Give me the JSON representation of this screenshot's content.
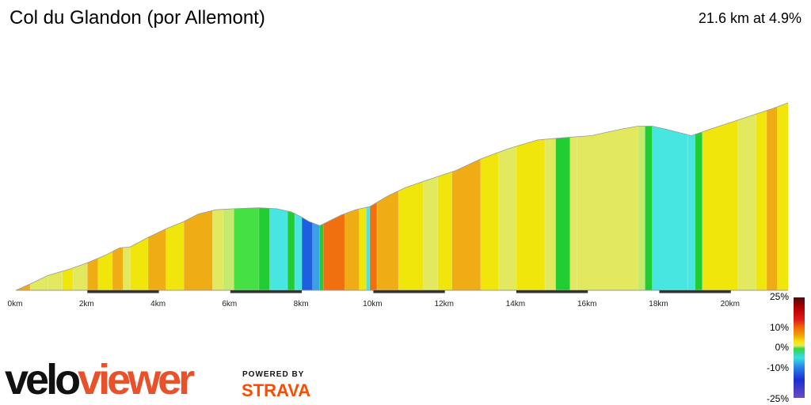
{
  "header": {
    "title": "Col du Glandon (por Allemont)",
    "summary": "21.6 km at 4.9%"
  },
  "branding": {
    "logo_part1": "velo",
    "logo_part2": "viewer",
    "powered_by": "POWERED BY",
    "strava": "STRAVA",
    "strava_color": "#fc4c02"
  },
  "gradient_scale": {
    "labels": [
      "25%",
      "10%",
      "0%",
      "-10%",
      "-25%"
    ]
  },
  "chart_data": {
    "type": "area",
    "title": "Col du Glandon (por Allemont)",
    "xlabel": "",
    "ylabel": "",
    "xlim": [
      0,
      21.6
    ],
    "ylim": [
      0,
      1000
    ],
    "x_ticks": [
      {
        "value": 0,
        "label": "0km"
      },
      {
        "value": 2,
        "label": "2km"
      },
      {
        "value": 4,
        "label": "4km"
      },
      {
        "value": 6,
        "label": "6km"
      },
      {
        "value": 8,
        "label": "8km"
      },
      {
        "value": 10,
        "label": "10km"
      },
      {
        "value": 12,
        "label": "12km"
      },
      {
        "value": 14,
        "label": "14km"
      },
      {
        "value": 16,
        "label": "16km"
      },
      {
        "value": 18,
        "label": "18km"
      },
      {
        "value": 20,
        "label": "20km"
      }
    ],
    "profile": [
      [
        0.0,
        0
      ],
      [
        0.4,
        30
      ],
      [
        0.9,
        70
      ],
      [
        1.5,
        100
      ],
      [
        2.0,
        130
      ],
      [
        2.5,
        165
      ],
      [
        2.9,
        200
      ],
      [
        3.2,
        205
      ],
      [
        3.7,
        250
      ],
      [
        4.2,
        290
      ],
      [
        4.7,
        325
      ],
      [
        5.1,
        360
      ],
      [
        5.6,
        380
      ],
      [
        6.1,
        385
      ],
      [
        6.8,
        390
      ],
      [
        7.3,
        385
      ],
      [
        7.7,
        370
      ],
      [
        8.0,
        345
      ],
      [
        8.2,
        325
      ],
      [
        8.5,
        305
      ],
      [
        8.8,
        330
      ],
      [
        9.1,
        355
      ],
      [
        9.5,
        380
      ],
      [
        9.9,
        395
      ],
      [
        10.4,
        445
      ],
      [
        10.9,
        485
      ],
      [
        11.5,
        520
      ],
      [
        12.3,
        565
      ],
      [
        13.0,
        620
      ],
      [
        13.8,
        670
      ],
      [
        14.6,
        710
      ],
      [
        15.3,
        720
      ],
      [
        16.1,
        730
      ],
      [
        16.9,
        760
      ],
      [
        17.4,
        775
      ],
      [
        17.8,
        775
      ],
      [
        18.2,
        760
      ],
      [
        18.9,
        730
      ],
      [
        19.5,
        765
      ],
      [
        20.4,
        815
      ],
      [
        21.2,
        860
      ],
      [
        21.6,
        885
      ]
    ],
    "segments": [
      {
        "x0": 0.0,
        "x1": 0.4,
        "color": "#f0ac14"
      },
      {
        "x0": 0.4,
        "x1": 0.9,
        "color": "#e3e95e"
      },
      {
        "x0": 0.9,
        "x1": 1.3,
        "color": "#e3e95e"
      },
      {
        "x0": 1.3,
        "x1": 1.6,
        "color": "#f0e60c"
      },
      {
        "x0": 1.6,
        "x1": 2.0,
        "color": "#e3e95e"
      },
      {
        "x0": 2.0,
        "x1": 2.3,
        "color": "#f0ac14"
      },
      {
        "x0": 2.3,
        "x1": 2.7,
        "color": "#f0e60c"
      },
      {
        "x0": 2.7,
        "x1": 3.0,
        "color": "#f0ac14"
      },
      {
        "x0": 3.0,
        "x1": 3.2,
        "color": "#e3e95e"
      },
      {
        "x0": 3.2,
        "x1": 3.7,
        "color": "#f0e60c"
      },
      {
        "x0": 3.7,
        "x1": 4.2,
        "color": "#f0ac14"
      },
      {
        "x0": 4.2,
        "x1": 4.7,
        "color": "#f0e60c"
      },
      {
        "x0": 4.7,
        "x1": 5.5,
        "color": "#f0ac14"
      },
      {
        "x0": 5.5,
        "x1": 5.8,
        "color": "#e3e95e"
      },
      {
        "x0": 5.8,
        "x1": 6.1,
        "color": "#c6ea6e"
      },
      {
        "x0": 6.1,
        "x1": 6.8,
        "color": "#44e044"
      },
      {
        "x0": 6.8,
        "x1": 7.1,
        "color": "#22cc33"
      },
      {
        "x0": 7.1,
        "x1": 7.6,
        "color": "#48e6e0"
      },
      {
        "x0": 7.6,
        "x1": 7.8,
        "color": "#22cc33"
      },
      {
        "x0": 7.8,
        "x1": 8.0,
        "color": "#48e6e0"
      },
      {
        "x0": 8.0,
        "x1": 8.3,
        "color": "#1c5fe0"
      },
      {
        "x0": 8.3,
        "x1": 8.5,
        "color": "#3aa0e8"
      },
      {
        "x0": 8.5,
        "x1": 8.6,
        "color": "#22cc33"
      },
      {
        "x0": 8.6,
        "x1": 9.2,
        "color": "#f07010"
      },
      {
        "x0": 9.2,
        "x1": 9.6,
        "color": "#f0ac14"
      },
      {
        "x0": 9.6,
        "x1": 9.8,
        "color": "#f0e60c"
      },
      {
        "x0": 9.8,
        "x1": 9.9,
        "color": "#48e6e0"
      },
      {
        "x0": 9.9,
        "x1": 10.1,
        "color": "#f07010"
      },
      {
        "x0": 10.1,
        "x1": 10.7,
        "color": "#f0ac14"
      },
      {
        "x0": 10.7,
        "x1": 11.4,
        "color": "#f0e60c"
      },
      {
        "x0": 11.4,
        "x1": 11.8,
        "color": "#e3e95e"
      },
      {
        "x0": 11.8,
        "x1": 12.2,
        "color": "#f0e60c"
      },
      {
        "x0": 12.2,
        "x1": 13.0,
        "color": "#f0ac14"
      },
      {
        "x0": 13.0,
        "x1": 13.5,
        "color": "#f0e60c"
      },
      {
        "x0": 13.5,
        "x1": 14.0,
        "color": "#e3e95e"
      },
      {
        "x0": 14.0,
        "x1": 14.8,
        "color": "#f0e60c"
      },
      {
        "x0": 14.8,
        "x1": 15.1,
        "color": "#e3e95e"
      },
      {
        "x0": 15.1,
        "x1": 15.5,
        "color": "#22cc33"
      },
      {
        "x0": 15.5,
        "x1": 15.7,
        "color": "#e3e95e"
      },
      {
        "x0": 15.7,
        "x1": 17.4,
        "color": "#e3e95e"
      },
      {
        "x0": 17.4,
        "x1": 17.6,
        "color": "#c6ea6e"
      },
      {
        "x0": 17.6,
        "x1": 17.8,
        "color": "#22cc33"
      },
      {
        "x0": 17.8,
        "x1": 18.8,
        "color": "#48e6e0"
      },
      {
        "x0": 18.8,
        "x1": 19.0,
        "color": "#48e6e0"
      },
      {
        "x0": 19.0,
        "x1": 19.2,
        "color": "#22cc33"
      },
      {
        "x0": 19.2,
        "x1": 20.2,
        "color": "#f0e60c"
      },
      {
        "x0": 20.2,
        "x1": 20.7,
        "color": "#e3e95e"
      },
      {
        "x0": 20.7,
        "x1": 21.0,
        "color": "#f0e60c"
      },
      {
        "x0": 21.0,
        "x1": 21.3,
        "color": "#f0ac14"
      },
      {
        "x0": 21.3,
        "x1": 21.6,
        "color": "#f0e60c"
      }
    ],
    "km_markers": [
      [
        2,
        4
      ],
      [
        6,
        8
      ],
      [
        10,
        12
      ],
      [
        14,
        16
      ],
      [
        18,
        20
      ]
    ],
    "grid": false,
    "legend": "right"
  }
}
